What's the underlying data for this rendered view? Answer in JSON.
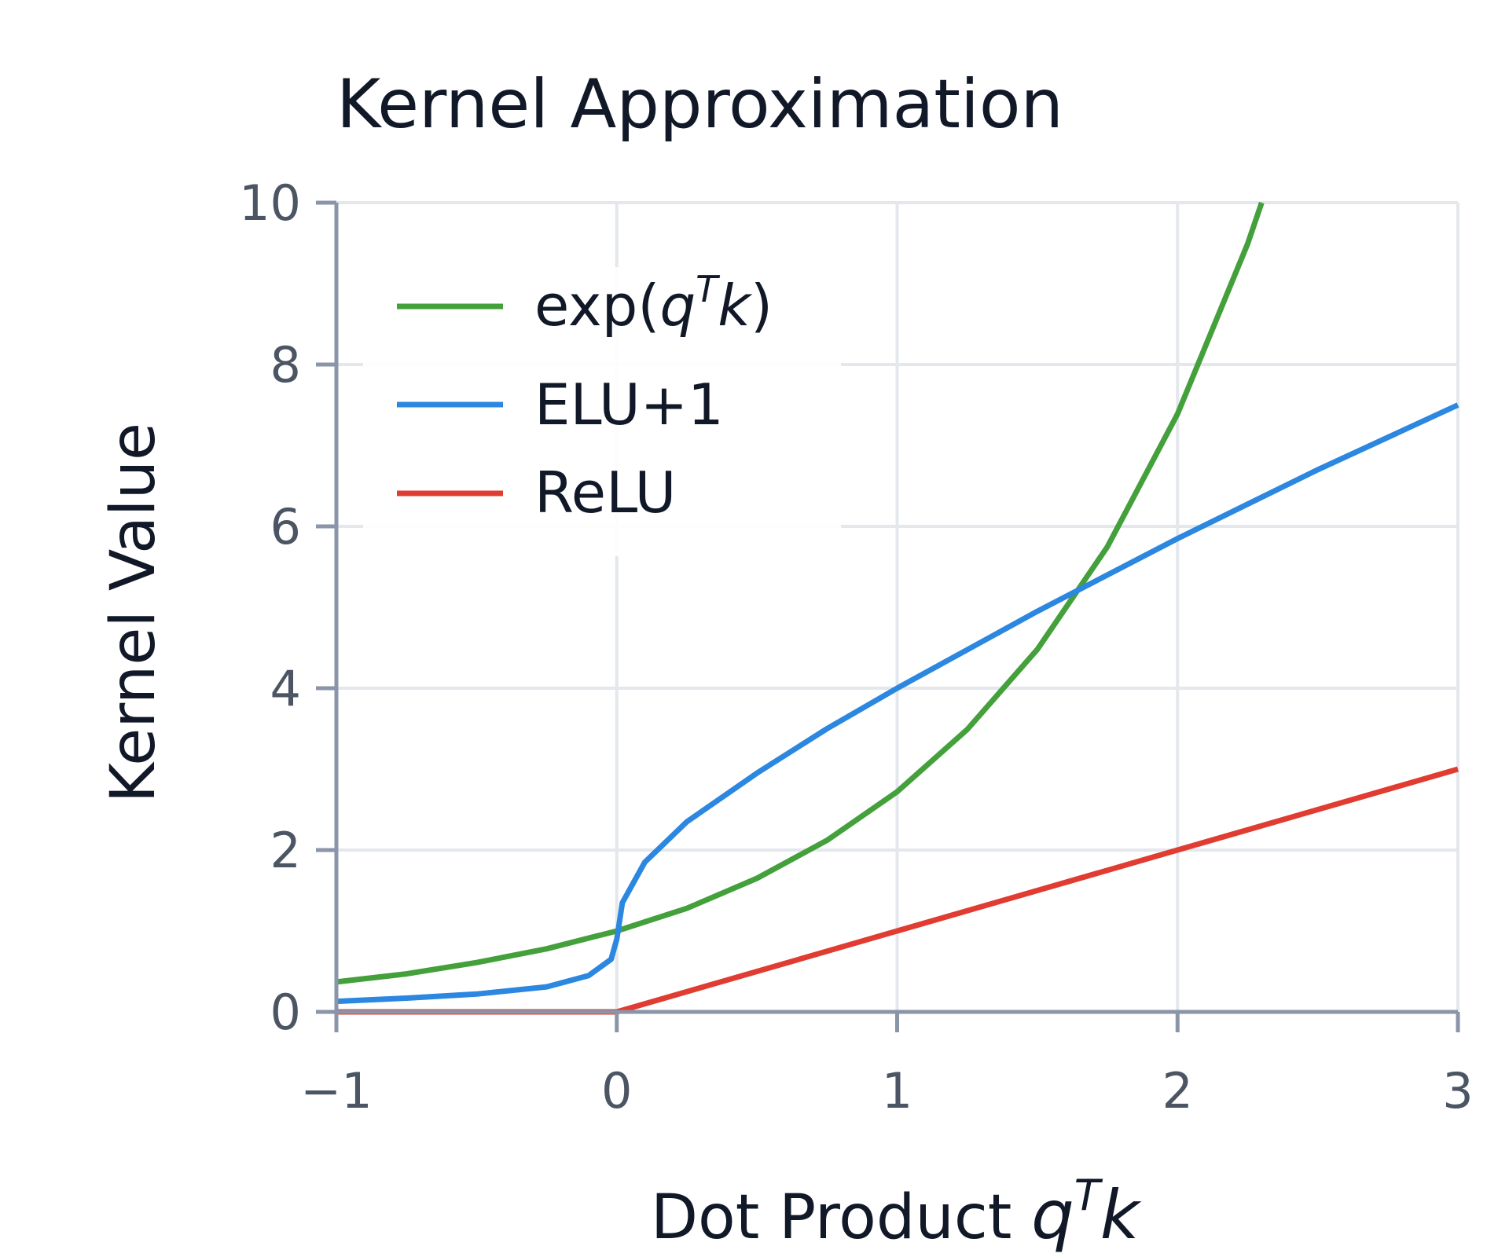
{
  "chart_data": {
    "type": "line",
    "title": "Kernel Approximation",
    "xlabel": {
      "text": "Dot Product ",
      "math_base": "q",
      "math_sup": "T",
      "math_tail": "k"
    },
    "ylabel": "Kernel Value",
    "xlim": [
      -1,
      3
    ],
    "ylim": [
      0,
      10
    ],
    "xticks": [
      -1,
      0,
      1,
      2,
      3
    ],
    "xtick_labels": [
      "−1",
      "0",
      "1",
      "2",
      "3"
    ],
    "yticks": [
      0,
      2,
      4,
      6,
      8,
      10
    ],
    "ytick_labels": [
      "0",
      "2",
      "4",
      "6",
      "8",
      "10"
    ],
    "grid": true,
    "legend_position": "top-left",
    "legend": {
      "exp": {
        "prefix": "exp(",
        "base": "q",
        "sup": "T",
        "tail": "k",
        "suffix": ")"
      },
      "elu": "ELU+1",
      "relu": "ReLU"
    },
    "series": [
      {
        "key": "exp",
        "color": "#43a03b",
        "x": [
          -1.0,
          -0.75,
          -0.5,
          -0.25,
          0.0,
          0.25,
          0.5,
          0.75,
          1.0,
          1.25,
          1.5,
          1.75,
          2.0,
          2.25,
          2.3
        ],
        "y": [
          0.37,
          0.47,
          0.61,
          0.78,
          1.0,
          1.28,
          1.65,
          2.12,
          2.72,
          3.49,
          4.48,
          5.75,
          7.39,
          9.49,
          10.0
        ]
      },
      {
        "key": "elu",
        "color": "#2b87e0",
        "x": [
          -1.0,
          -0.75,
          -0.5,
          -0.25,
          -0.1,
          -0.02,
          0.0,
          0.02,
          0.1,
          0.25,
          0.5,
          0.75,
          1.0,
          1.5,
          2.0,
          2.5,
          3.0
        ],
        "y": [
          0.13,
          0.17,
          0.22,
          0.31,
          0.45,
          0.65,
          0.9,
          1.35,
          1.85,
          2.35,
          2.95,
          3.5,
          4.0,
          4.95,
          5.85,
          6.7,
          7.5
        ]
      },
      {
        "key": "relu",
        "color": "#e03c31",
        "x": [
          -1.0,
          0.0,
          3.0
        ],
        "y": [
          0.0,
          0.0,
          3.0
        ]
      }
    ]
  },
  "colors": {
    "axis": "#8a95a8",
    "grid": "#e4e7ec"
  }
}
